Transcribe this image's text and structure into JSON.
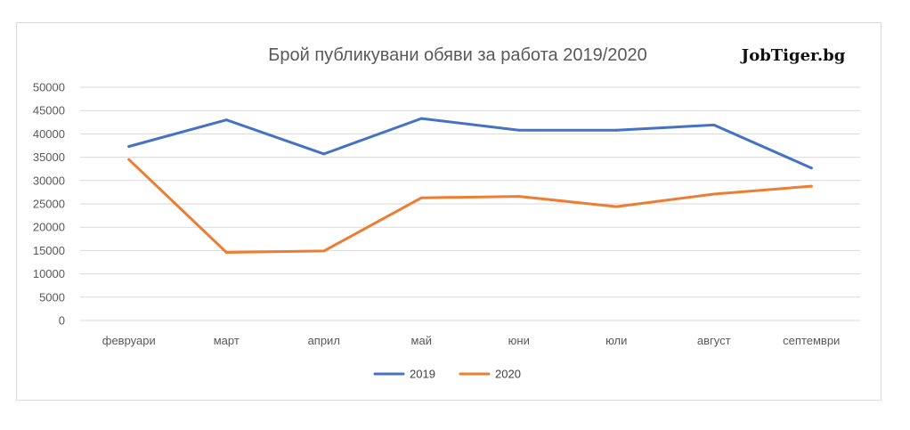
{
  "chart_data": {
    "type": "line",
    "title": "Брой публикувани обяви за работа 2019/2020",
    "logo": "JobTiger.bg",
    "categories": [
      "февруари",
      "март",
      "април",
      "май",
      "юни",
      "юли",
      "август",
      "септември"
    ],
    "series": [
      {
        "name": "2019",
        "color": "#4472C4",
        "values": [
          37300,
          43000,
          35700,
          43300,
          40800,
          40800,
          41900,
          32700
        ]
      },
      {
        "name": "2020",
        "color": "#ED7D31",
        "values": [
          34500,
          14600,
          14900,
          26300,
          26600,
          24400,
          27100,
          28800
        ]
      }
    ],
    "ylim": [
      0,
      50000
    ],
    "yticks": [
      0,
      5000,
      10000,
      15000,
      20000,
      25000,
      30000,
      35000,
      40000,
      45000,
      50000
    ],
    "grid": true,
    "legend": "bottom"
  }
}
